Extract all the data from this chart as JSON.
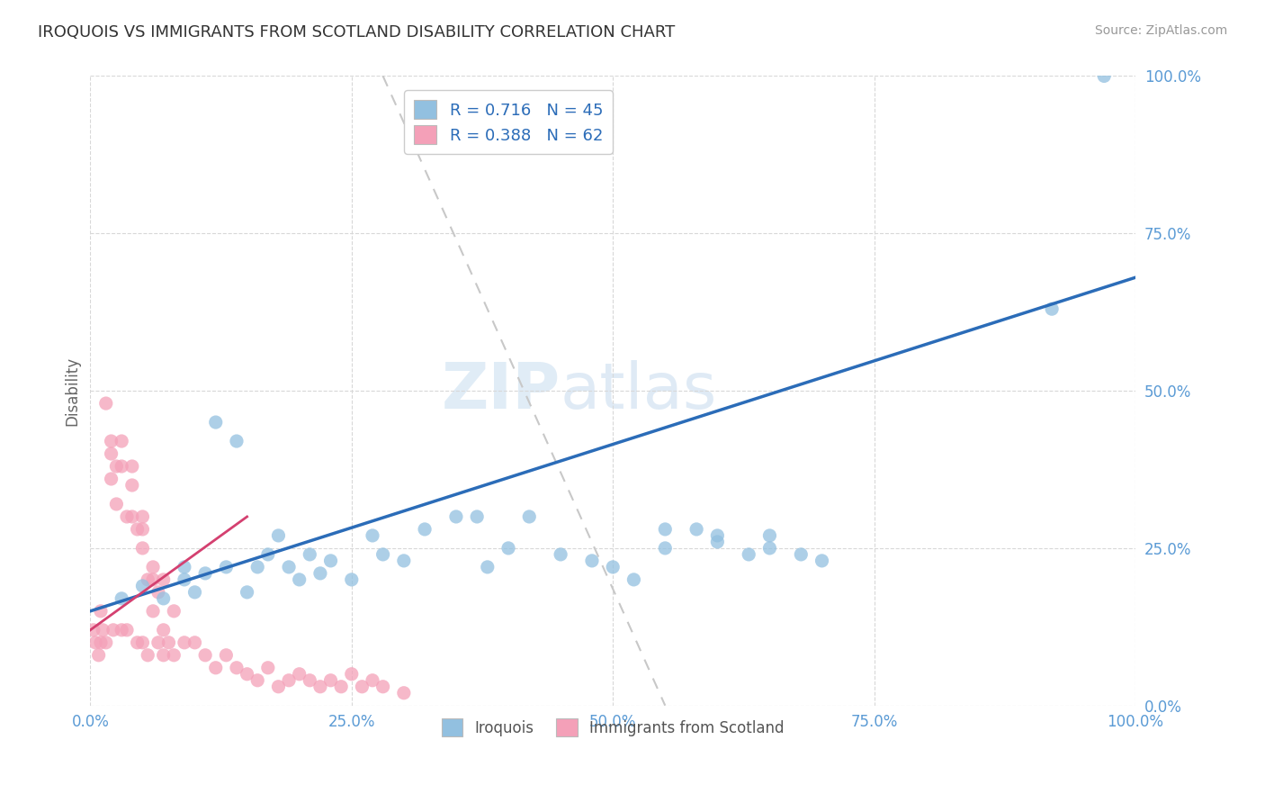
{
  "title": "IROQUOIS VS IMMIGRANTS FROM SCOTLAND DISABILITY CORRELATION CHART",
  "source": "Source: ZipAtlas.com",
  "ylabel": "Disability",
  "xlim": [
    0,
    100
  ],
  "ylim": [
    0,
    100
  ],
  "xticks": [
    0,
    25,
    50,
    75,
    100
  ],
  "yticks": [
    0,
    25,
    50,
    75,
    100
  ],
  "xtick_labels": [
    "0.0%",
    "25.0%",
    "50.0%",
    "75.0%",
    "100.0%"
  ],
  "ytick_labels": [
    "0.0%",
    "25.0%",
    "50.0%",
    "75.0%",
    "100.0%"
  ],
  "blue_color": "#92c0e0",
  "pink_color": "#f4a0b8",
  "blue_line_color": "#2b6cb8",
  "pink_line_color": "#d44070",
  "ref_line_color": "#c8c8c8",
  "watermark_zip": "ZIP",
  "watermark_atlas": "atlas",
  "legend_line1": "R = 0.716   N = 45",
  "legend_line2": "R = 0.388   N = 62",
  "legend_label_blue": "Iroquois",
  "legend_label_pink": "Immigrants from Scotland",
  "blue_line_x0": 0,
  "blue_line_y0": 15,
  "blue_line_x1": 100,
  "blue_line_y1": 68,
  "pink_line_x0": 0,
  "pink_line_y0": 12,
  "pink_line_x1": 15,
  "pink_line_y1": 30,
  "ref_line_x0": 28,
  "ref_line_y0": 100,
  "ref_line_x1": 55,
  "ref_line_y1": 0,
  "iroquois_x": [
    3,
    5,
    7,
    9,
    9,
    10,
    11,
    12,
    13,
    14,
    15,
    16,
    17,
    18,
    19,
    20,
    21,
    22,
    23,
    25,
    27,
    28,
    30,
    32,
    35,
    37,
    38,
    40,
    42,
    45,
    48,
    50,
    52,
    55,
    58,
    60,
    63,
    65,
    68,
    70,
    55,
    60,
    65,
    92,
    97
  ],
  "iroquois_y": [
    17,
    19,
    17,
    22,
    20,
    18,
    21,
    45,
    22,
    42,
    18,
    22,
    24,
    27,
    22,
    20,
    24,
    21,
    23,
    20,
    27,
    24,
    23,
    28,
    30,
    30,
    22,
    25,
    30,
    24,
    23,
    22,
    20,
    25,
    28,
    27,
    24,
    27,
    24,
    23,
    28,
    26,
    25,
    63,
    100
  ],
  "scotland_x": [
    0.3,
    0.5,
    0.8,
    1,
    1,
    1.2,
    1.5,
    1.5,
    2,
    2,
    2,
    2.2,
    2.5,
    2.5,
    3,
    3,
    3,
    3.5,
    3.5,
    4,
    4,
    4,
    4.5,
    4.5,
    5,
    5,
    5,
    5,
    5.5,
    5.5,
    6,
    6,
    6,
    6.5,
    6.5,
    7,
    7,
    7,
    7.5,
    8,
    8,
    9,
    10,
    11,
    12,
    13,
    14,
    15,
    16,
    17,
    18,
    19,
    20,
    21,
    22,
    23,
    24,
    25,
    26,
    27,
    28,
    30
  ],
  "scotland_y": [
    12,
    10,
    8,
    15,
    10,
    12,
    48,
    10,
    42,
    40,
    36,
    12,
    38,
    32,
    12,
    42,
    38,
    30,
    12,
    38,
    35,
    30,
    28,
    10,
    30,
    28,
    25,
    10,
    20,
    8,
    22,
    20,
    15,
    18,
    10,
    20,
    12,
    8,
    10,
    15,
    8,
    10,
    10,
    8,
    6,
    8,
    6,
    5,
    4,
    6,
    3,
    4,
    5,
    4,
    3,
    4,
    3,
    5,
    3,
    4,
    3,
    2
  ]
}
